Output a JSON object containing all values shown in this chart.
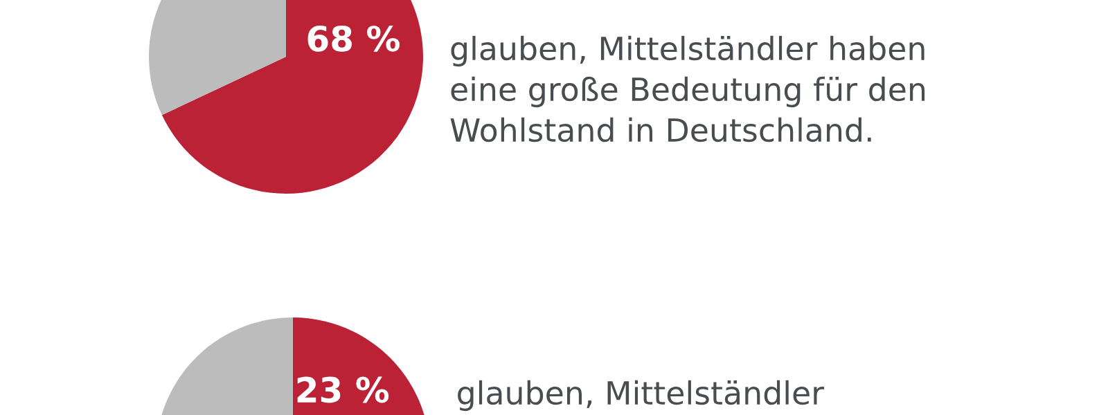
{
  "chart_data": [
    {
      "type": "pie",
      "categories": [
        null,
        null
      ],
      "values": [
        68,
        32
      ],
      "colors": [
        "#bc2236",
        "#bdbcbc"
      ],
      "value_labels": [
        "68 %",
        null
      ],
      "annotations": [
        "glauben, Mittelständler haben\neine große Bedeutung für den\nWohlstand in Deutschland."
      ]
    },
    {
      "type": "pie",
      "categories": [
        null,
        null
      ],
      "values": [
        23,
        77
      ],
      "colors": [
        "#bc2236",
        "#bdbcbc"
      ],
      "value_labels": [
        "23 %",
        null
      ],
      "annotations": [
        "glauben, Mittelständler"
      ]
    }
  ]
}
